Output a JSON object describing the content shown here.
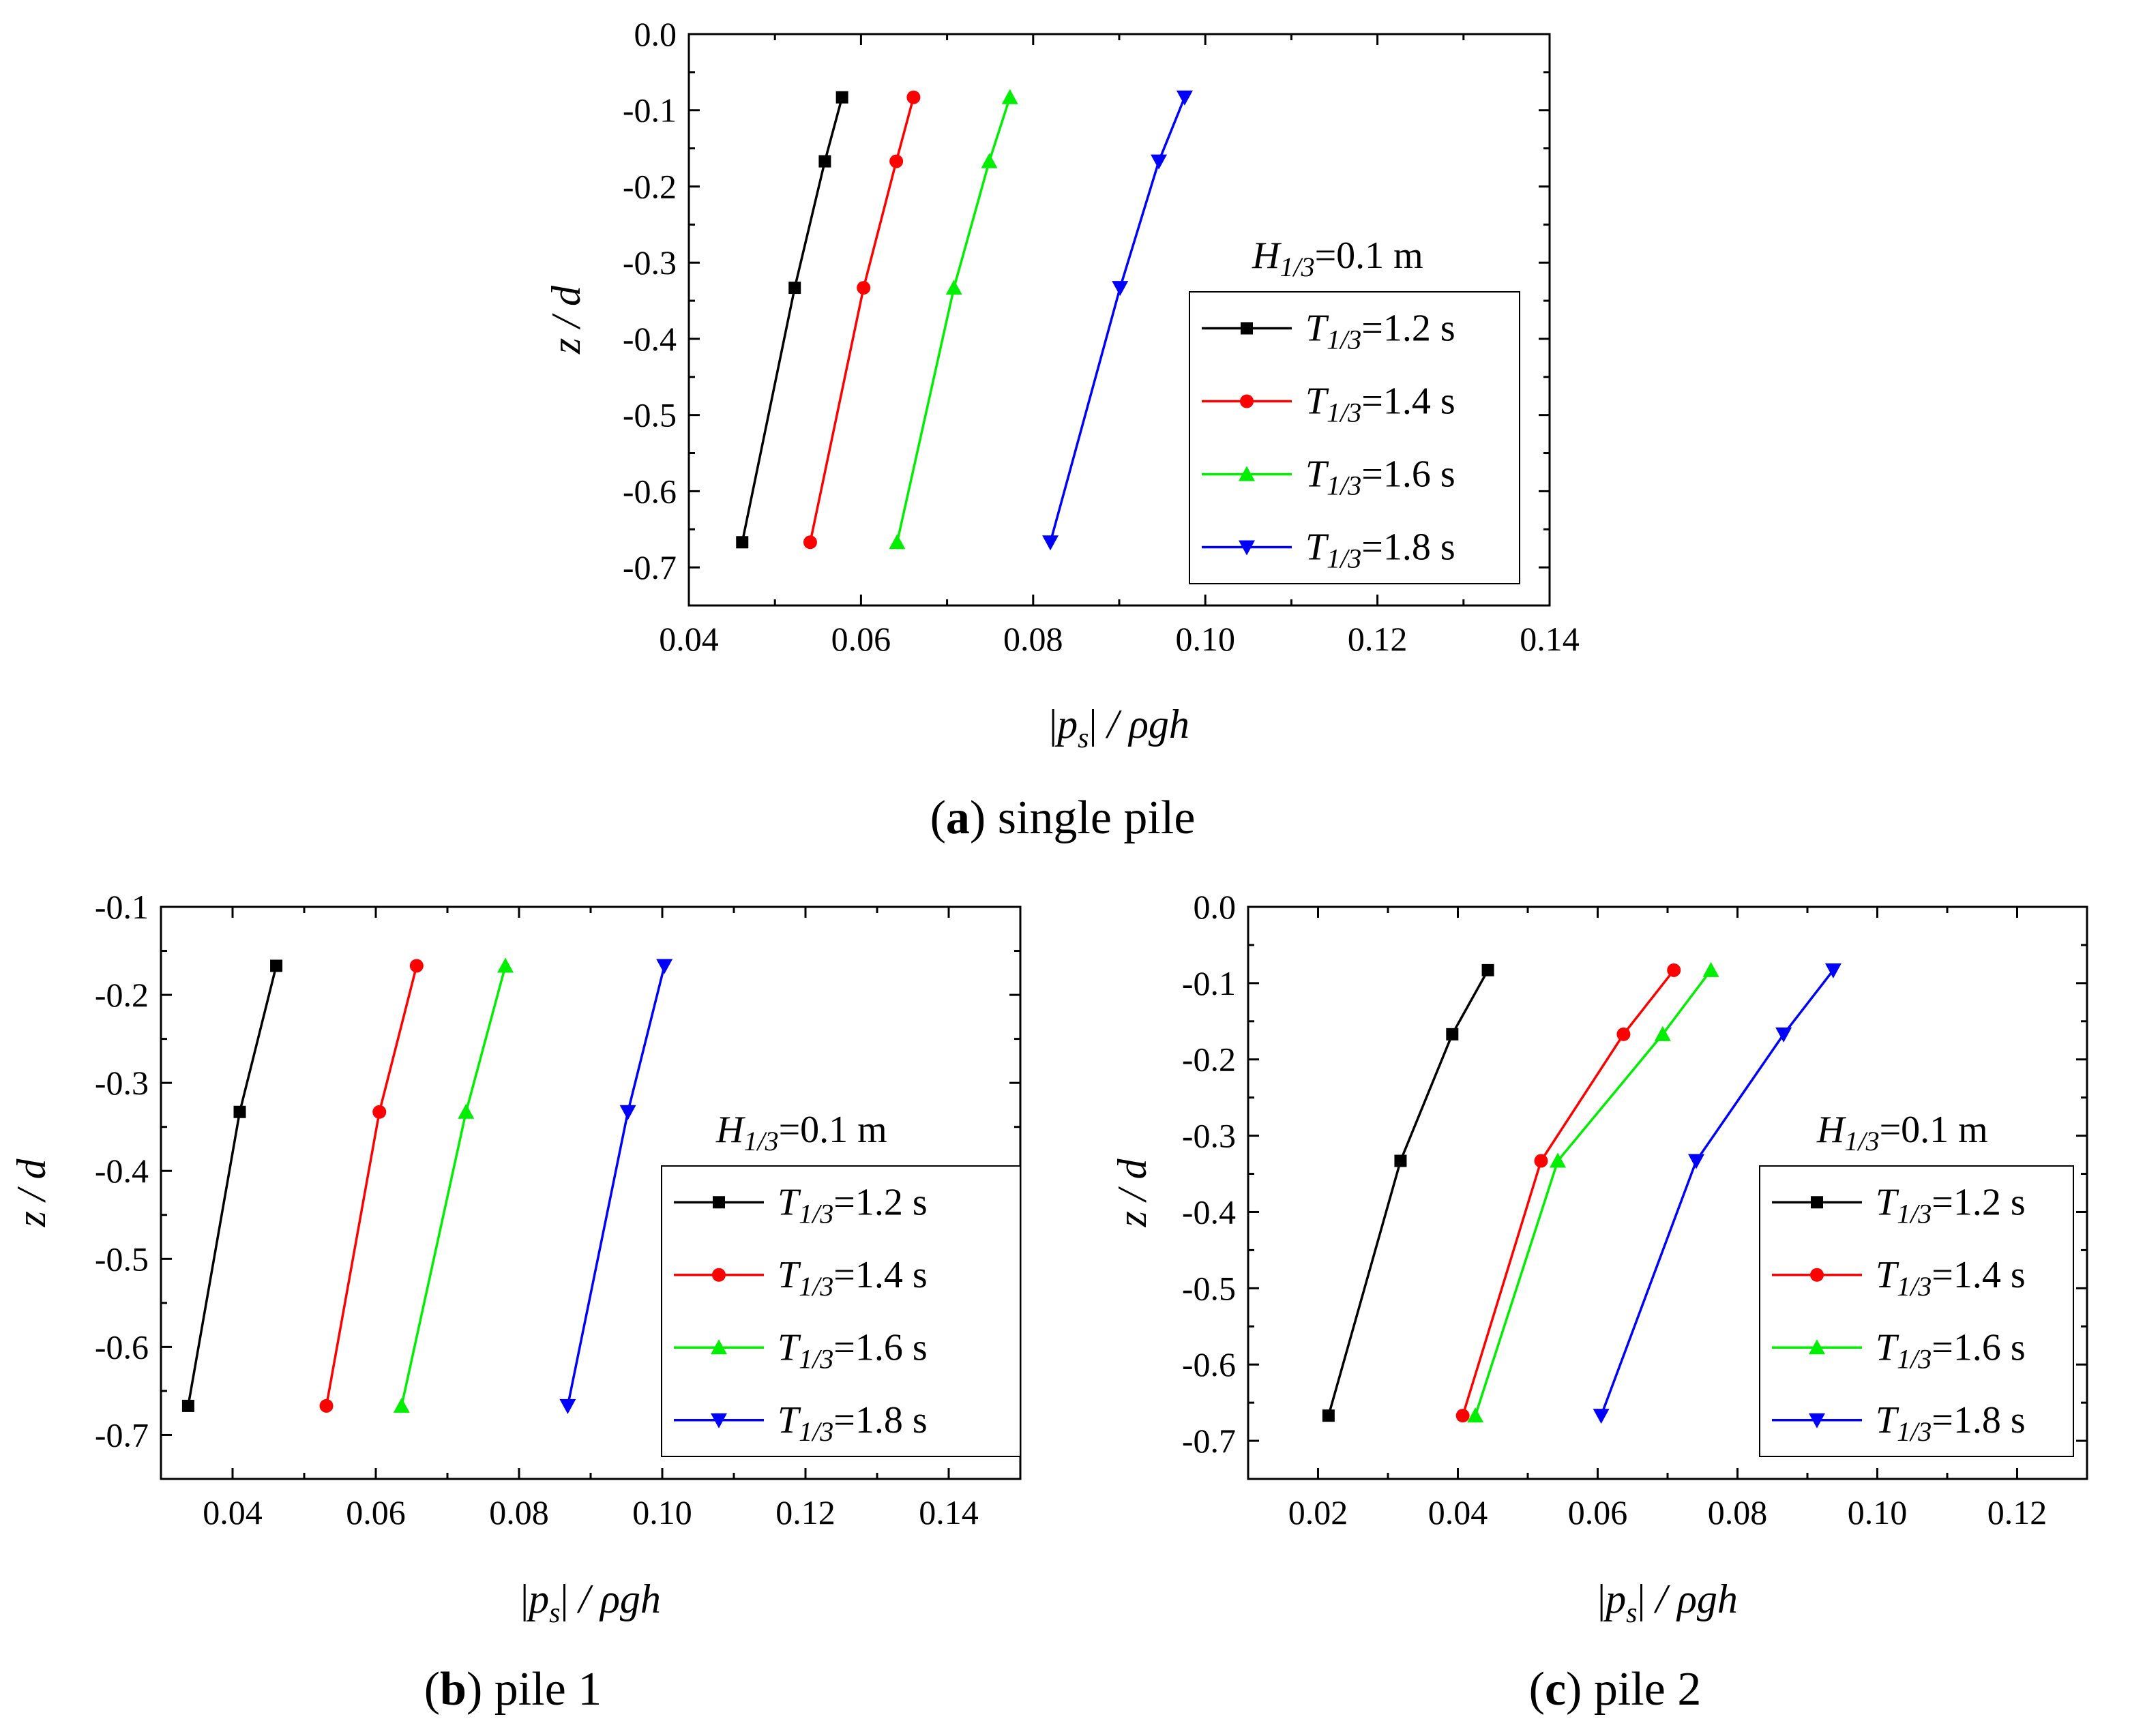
{
  "colors": {
    "s12": "#000000",
    "s14": "#ff0000",
    "s16": "#00ee00",
    "s18": "#0000ff"
  },
  "charts": [
    {
      "type": "line",
      "caption": {
        "letter": "a",
        "text": " single pile"
      },
      "xlabel": "|p_s| / ρgh",
      "ylabel": "z / d",
      "xlim": [
        0.04,
        0.14
      ],
      "ylim": [
        -0.75,
        0.0
      ],
      "xticks": [
        "0.04",
        "0.06",
        "0.08",
        "0.10",
        "0.12",
        "0.14"
      ],
      "yticks": [
        "0.0",
        "-0.1",
        "-0.2",
        "-0.3",
        "-0.4",
        "-0.5",
        "-0.6",
        "-0.7"
      ],
      "legend_title": "H1/3=0.1 m",
      "series": [
        {
          "name": "T1/3=1.2 s",
          "marker": "square",
          "points": [
            [
              0.0578,
              -0.083
            ],
            [
              0.0558,
              -0.167
            ],
            [
              0.0523,
              -0.333
            ],
            [
              0.0462,
              -0.667
            ]
          ]
        },
        {
          "name": "T1/3=1.4 s",
          "marker": "circle",
          "points": [
            [
              0.0661,
              -0.083
            ],
            [
              0.0641,
              -0.167
            ],
            [
              0.0603,
              -0.333
            ],
            [
              0.0541,
              -0.667
            ]
          ]
        },
        {
          "name": "T1/3=1.6 s",
          "marker": "triangle-up",
          "points": [
            [
              0.0773,
              -0.083
            ],
            [
              0.0749,
              -0.167
            ],
            [
              0.0708,
              -0.333
            ],
            [
              0.0642,
              -0.667
            ]
          ]
        },
        {
          "name": "T1/3=1.8 s",
          "marker": "triangle-down",
          "points": [
            [
              0.0976,
              -0.083
            ],
            [
              0.0946,
              -0.167
            ],
            [
              0.0901,
              -0.333
            ],
            [
              0.082,
              -0.667
            ]
          ]
        }
      ]
    },
    {
      "type": "line",
      "caption": {
        "letter": "b",
        "text": " pile 1"
      },
      "xlabel": "|p_s| / ρgh",
      "ylabel": "z / d",
      "xlim": [
        0.03,
        0.15
      ],
      "ylim": [
        -0.75,
        -0.1
      ],
      "xticks": [
        "0.04",
        "0.06",
        "0.08",
        "0.10",
        "0.12",
        "0.14"
      ],
      "yticks": [
        "-0.1",
        "-0.2",
        "-0.3",
        "-0.4",
        "-0.5",
        "-0.6",
        "-0.7"
      ],
      "legend_title": "H1/3=0.1 m",
      "series": [
        {
          "name": "T1/3=1.2 s",
          "marker": "square",
          "points": [
            [
              0.0461,
              -0.167
            ],
            [
              0.041,
              -0.333
            ],
            [
              0.0338,
              -0.667
            ]
          ]
        },
        {
          "name": "T1/3=1.4 s",
          "marker": "circle",
          "points": [
            [
              0.0657,
              -0.167
            ],
            [
              0.0605,
              -0.333
            ],
            [
              0.0531,
              -0.667
            ]
          ]
        },
        {
          "name": "T1/3=1.6 s",
          "marker": "triangle-up",
          "points": [
            [
              0.0781,
              -0.167
            ],
            [
              0.0726,
              -0.333
            ],
            [
              0.0636,
              -0.667
            ]
          ]
        },
        {
          "name": "T1/3=1.8 s",
          "marker": "triangle-down",
          "points": [
            [
              0.1003,
              -0.167
            ],
            [
              0.0952,
              -0.333
            ],
            [
              0.0868,
              -0.667
            ]
          ]
        }
      ]
    },
    {
      "type": "line",
      "caption": {
        "letter": "c",
        "text": " pile 2"
      },
      "xlabel": "|p_s| / ρgh",
      "ylabel": "z / d",
      "xlim": [
        0.01,
        0.13
      ],
      "ylim": [
        -0.75,
        0.0
      ],
      "xticks": [
        "0.02",
        "0.04",
        "0.06",
        "0.08",
        "0.10",
        "0.12"
      ],
      "yticks": [
        "0.0",
        "-0.1",
        "-0.2",
        "-0.3",
        "-0.4",
        "-0.5",
        "-0.6",
        "-0.7"
      ],
      "legend_title": "H1/3=0.1 m",
      "series": [
        {
          "name": "T1/3=1.2 s",
          "marker": "square",
          "points": [
            [
              0.0443,
              -0.083
            ],
            [
              0.0392,
              -0.167
            ],
            [
              0.0318,
              -0.333
            ],
            [
              0.0215,
              -0.667
            ]
          ]
        },
        {
          "name": "T1/3=1.4 s",
          "marker": "circle",
          "points": [
            [
              0.0709,
              -0.083
            ],
            [
              0.0637,
              -0.167
            ],
            [
              0.0519,
              -0.333
            ],
            [
              0.0407,
              -0.667
            ]
          ]
        },
        {
          "name": "T1/3=1.6 s",
          "marker": "triangle-up",
          "points": [
            [
              0.0762,
              -0.083
            ],
            [
              0.0693,
              -0.167
            ],
            [
              0.0543,
              -0.333
            ],
            [
              0.0425,
              -0.667
            ]
          ]
        },
        {
          "name": "T1/3=1.8 s",
          "marker": "triangle-down",
          "points": [
            [
              0.0937,
              -0.083
            ],
            [
              0.0866,
              -0.167
            ],
            [
              0.0741,
              -0.333
            ],
            [
              0.0605,
              -0.667
            ]
          ]
        }
      ]
    }
  ]
}
